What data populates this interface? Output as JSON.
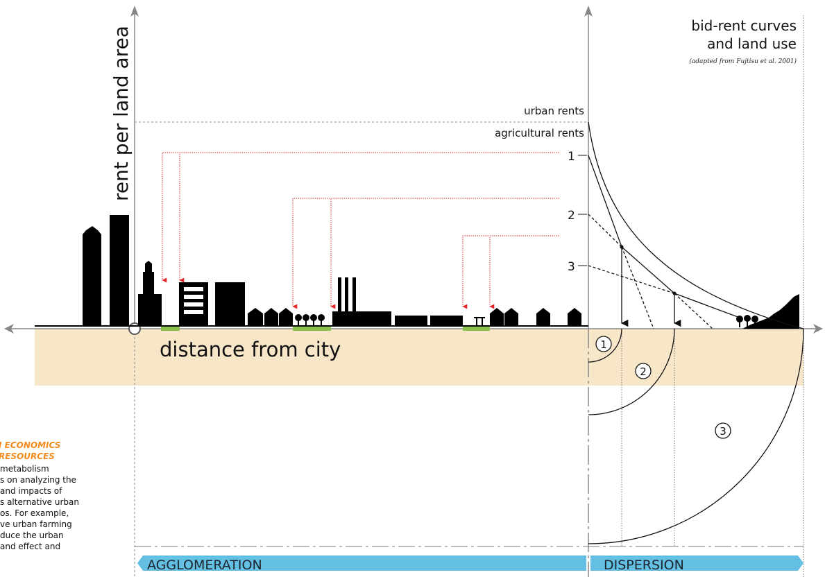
{
  "y_axis_label": "rent per land area",
  "x_axis_label": "distance from city",
  "title": {
    "line1": "bid-rent curves",
    "line2": "and land use",
    "source": "(adapted from Fujtisu et al. 2001)"
  },
  "rent_labels": {
    "urban": "urban rents",
    "agricultural": "agricultural rents"
  },
  "curve_labels": [
    "1",
    "2",
    "3"
  ],
  "circle_labels": [
    "1",
    "2",
    "3"
  ],
  "bands": {
    "left": "AGGLOMERATION",
    "right": "DISPERSION"
  },
  "side_note": {
    "title_line1": "I ECONOMICS",
    "title_line2": "RESOURCES",
    "body": [
      "metabolism",
      "s on analyzing the",
      " and impacts of",
      "s alternative urban",
      "os. For example,",
      "ve urban farming",
      "duce the urban",
      "and effect and"
    ]
  },
  "colors": {
    "ground_band": "#f7e6c8",
    "green_plots": "#8bc34a",
    "red_arrows": "#e3262b",
    "band_blue": "#63c0e3",
    "buildings": "#000000",
    "side_title": "#f28a1c"
  }
}
